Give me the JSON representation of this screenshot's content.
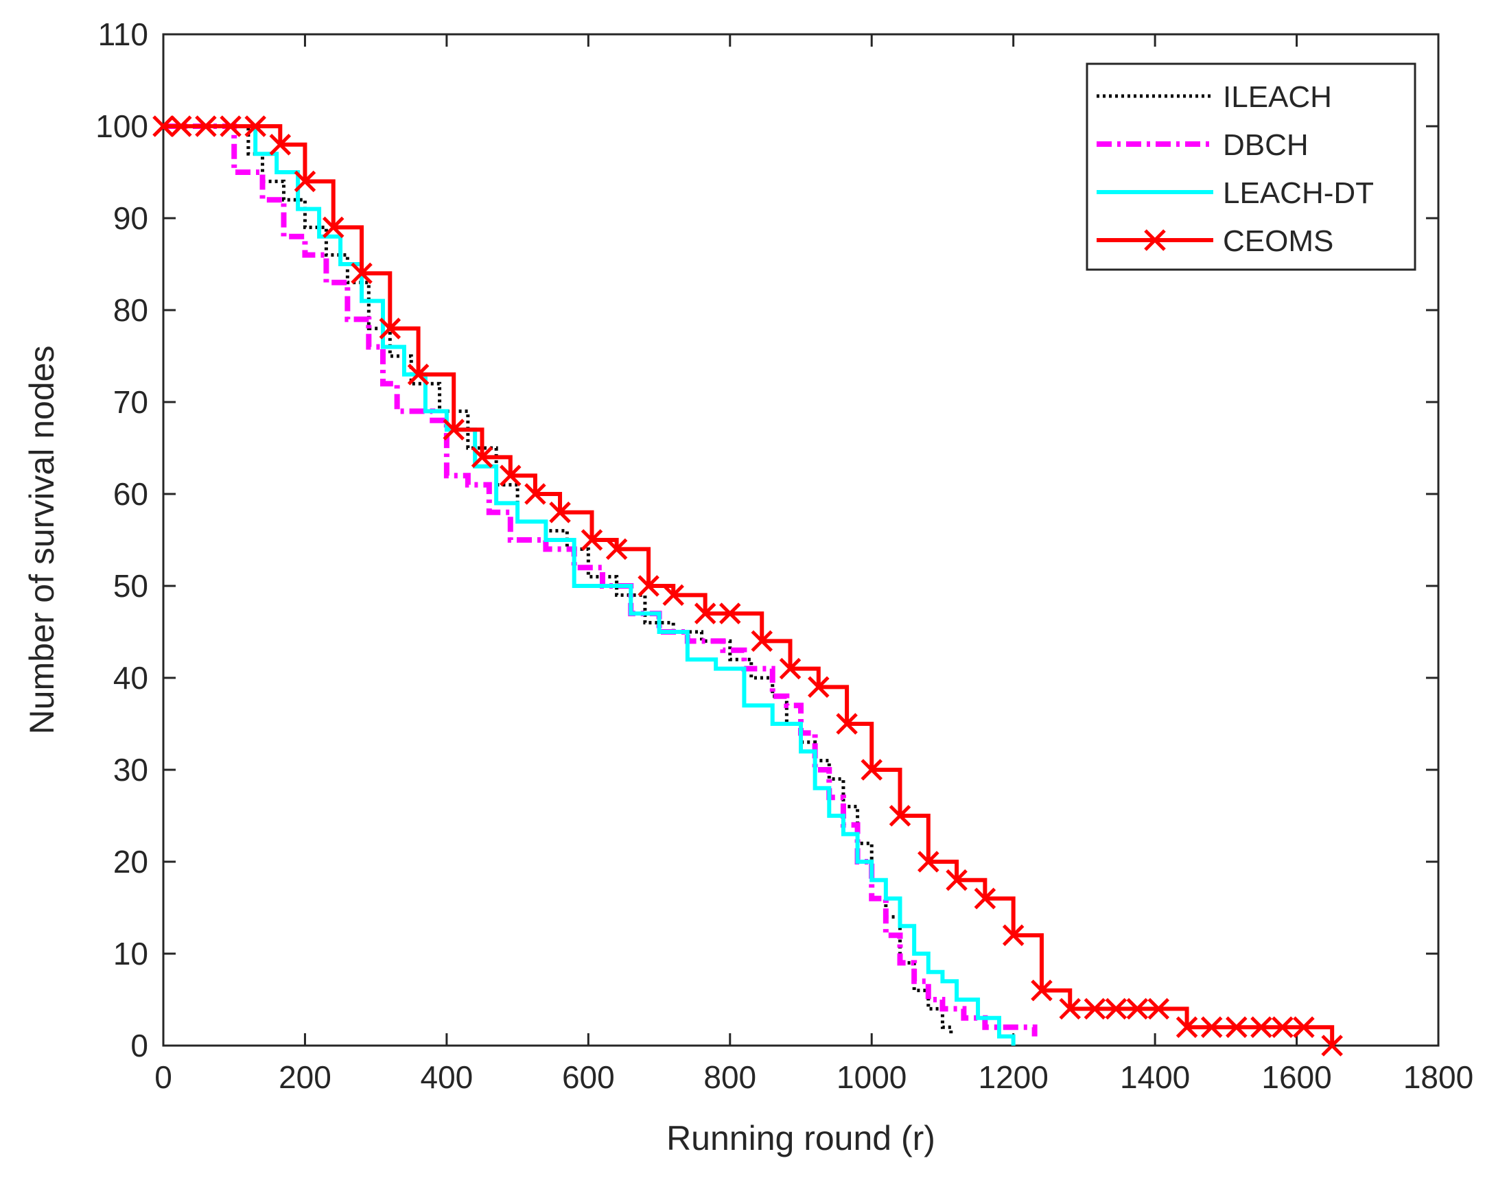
{
  "chart_data": {
    "type": "line",
    "title": "",
    "xlabel": "Running round (r)",
    "ylabel": "Number of survival nodes",
    "xlim": [
      0,
      1800
    ],
    "ylim": [
      0,
      110
    ],
    "xticks": [
      0,
      200,
      400,
      600,
      800,
      1000,
      1200,
      1400,
      1600,
      1800
    ],
    "yticks": [
      0,
      10,
      20,
      30,
      40,
      50,
      60,
      70,
      80,
      90,
      100,
      110
    ],
    "grid": false,
    "legend_position": "top-right",
    "series": [
      {
        "name": "ILEACH",
        "color": "#000000",
        "style": "dotted",
        "x": [
          0,
          100,
          120,
          140,
          170,
          200,
          230,
          260,
          290,
          320,
          350,
          390,
          430,
          470,
          500,
          540,
          570,
          600,
          640,
          680,
          720,
          760,
          800,
          830,
          860,
          880,
          900,
          920,
          940,
          960,
          980,
          1000,
          1020,
          1040,
          1060,
          1080,
          1100,
          1112
        ],
        "y": [
          100,
          100,
          97,
          94,
          92,
          89,
          86,
          83,
          78,
          75,
          72,
          69,
          65,
          61,
          57,
          56,
          54,
          51,
          49,
          46,
          45,
          44,
          42,
          40,
          38,
          35,
          33,
          31,
          29,
          26,
          22,
          18,
          14,
          9,
          6,
          4,
          2,
          1
        ]
      },
      {
        "name": "DBCH",
        "color": "#ff00ff",
        "style": "dash-dot",
        "x": [
          0,
          90,
          100,
          140,
          170,
          200,
          230,
          260,
          290,
          310,
          330,
          380,
          400,
          430,
          460,
          490,
          540,
          580,
          620,
          660,
          700,
          740,
          790,
          820,
          860,
          880,
          900,
          920,
          940,
          960,
          980,
          1000,
          1020,
          1040,
          1060,
          1080,
          1100,
          1130,
          1160,
          1200,
          1230
        ],
        "y": [
          100,
          100,
          95,
          92,
          88,
          86,
          83,
          79,
          76,
          72,
          69,
          68,
          62,
          61,
          58,
          55,
          54,
          52,
          50,
          47,
          45,
          44,
          43,
          41,
          38,
          37,
          34,
          30,
          27,
          24,
          20,
          16,
          12,
          9,
          7,
          5,
          4,
          3,
          2,
          2,
          1
        ]
      },
      {
        "name": "LEACH-DT",
        "color": "#00ffff",
        "style": "solid",
        "x": [
          0,
          100,
          130,
          160,
          190,
          220,
          250,
          280,
          310,
          340,
          370,
          400,
          440,
          470,
          500,
          540,
          580,
          620,
          660,
          700,
          740,
          780,
          820,
          860,
          900,
          920,
          940,
          960,
          980,
          1000,
          1020,
          1040,
          1060,
          1080,
          1100,
          1120,
          1150,
          1180,
          1200
        ],
        "y": [
          100,
          100,
          97,
          95,
          91,
          88,
          85,
          81,
          76,
          73,
          69,
          67,
          63,
          59,
          57,
          55,
          50,
          50,
          47,
          45,
          42,
          41,
          37,
          35,
          32,
          28,
          25,
          23,
          20,
          18,
          16,
          13,
          10,
          8,
          7,
          5,
          3,
          1,
          0
        ]
      },
      {
        "name": "CEOMS",
        "color": "#ff0000",
        "style": "solid-x",
        "x": [
          0,
          25,
          60,
          95,
          130,
          165,
          200,
          240,
          280,
          320,
          360,
          410,
          450,
          490,
          525,
          560,
          605,
          640,
          685,
          720,
          765,
          800,
          845,
          885,
          925,
          965,
          1000,
          1040,
          1080,
          1120,
          1160,
          1200,
          1240,
          1280,
          1315,
          1345,
          1375,
          1405,
          1445,
          1480,
          1515,
          1550,
          1580,
          1610,
          1650
        ],
        "y": [
          100,
          100,
          100,
          100,
          100,
          98,
          94,
          89,
          84,
          78,
          73,
          67,
          64,
          62,
          60,
          58,
          55,
          54,
          50,
          49,
          47,
          47,
          44,
          41,
          39,
          35,
          30,
          25,
          20,
          18,
          16,
          12,
          6,
          4,
          4,
          4,
          4,
          4,
          2,
          2,
          2,
          2,
          2,
          2,
          0
        ]
      }
    ]
  }
}
